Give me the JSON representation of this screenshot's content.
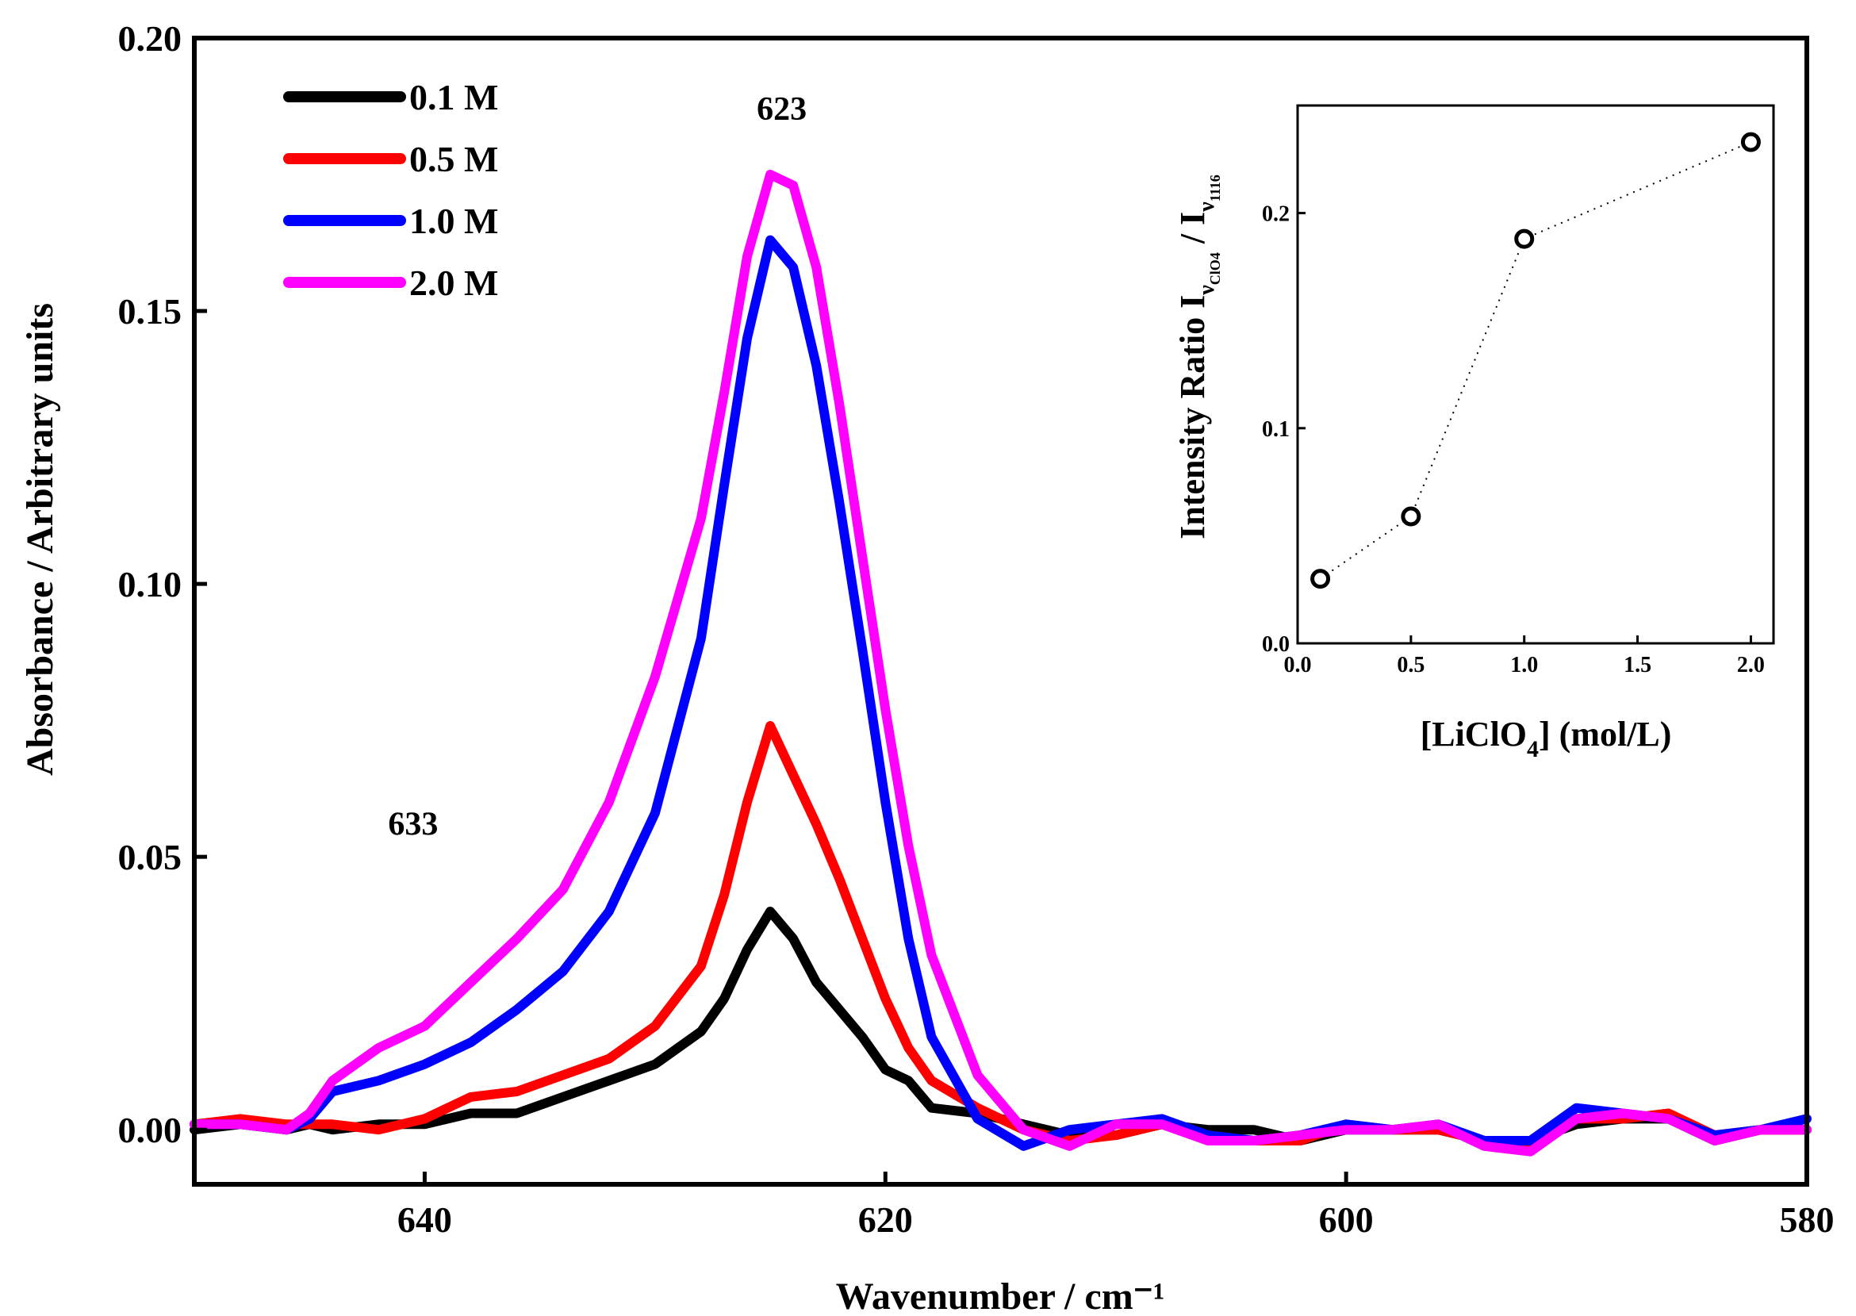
{
  "chart_data": [
    {
      "type": "line",
      "name": "main",
      "xlabel": "Wavenumber / cm⁻¹",
      "ylabel": "Absorbance / Arbitrary units",
      "xlim": [
        650,
        580
      ],
      "ylim": [
        -0.01,
        0.2
      ],
      "x_ticks": [
        640,
        620,
        600,
        580
      ],
      "x_tick_labels": [
        "640",
        "620",
        "600",
        "580"
      ],
      "y_ticks": [
        0.0,
        0.05,
        0.1,
        0.15,
        0.2
      ],
      "y_tick_labels": [
        "0.00",
        "0.05",
        "0.10",
        "0.15",
        "0.20"
      ],
      "legend": "top-left",
      "annotations": [
        {
          "text": "623",
          "x": 624.5,
          "y": 0.185
        },
        {
          "text": "633",
          "x": 640.5,
          "y": 0.054
        }
      ],
      "x": [
        650,
        648,
        646,
        645,
        644,
        642,
        640,
        638,
        636,
        634,
        632,
        630,
        628,
        627,
        626,
        625,
        624,
        623,
        622,
        621,
        620,
        619,
        618,
        616,
        614,
        612,
        610,
        608,
        606,
        604,
        602,
        600,
        598,
        596,
        594,
        592,
        590,
        588,
        586,
        584,
        582,
        580
      ],
      "series": [
        {
          "name": "0.1 M",
          "color": "#000000",
          "values": [
            0.0,
            0.001,
            0.0,
            0.001,
            0.0,
            0.001,
            0.001,
            0.003,
            0.003,
            0.006,
            0.009,
            0.012,
            0.018,
            0.024,
            0.033,
            0.04,
            0.035,
            0.027,
            0.022,
            0.017,
            0.011,
            0.009,
            0.004,
            0.003,
            0.001,
            -0.001,
            -0.001,
            0.001,
            0.0,
            0.0,
            -0.002,
            0.0,
            0.0,
            0.0,
            -0.002,
            -0.002,
            0.001,
            0.002,
            0.002,
            -0.002,
            0.0,
            0.0
          ]
        },
        {
          "name": "0.5 M",
          "color": "#ff0000",
          "values": [
            0.001,
            0.002,
            0.001,
            0.001,
            0.001,
            0.0,
            0.002,
            0.006,
            0.007,
            0.01,
            0.013,
            0.019,
            0.03,
            0.043,
            0.06,
            0.074,
            0.065,
            0.056,
            0.046,
            0.035,
            0.024,
            0.015,
            0.009,
            0.004,
            0.0,
            -0.002,
            -0.001,
            0.001,
            -0.001,
            -0.002,
            -0.002,
            0.001,
            0.0,
            0.0,
            -0.002,
            -0.003,
            0.002,
            0.002,
            0.003,
            -0.001,
            0.0,
            0.0
          ]
        },
        {
          "name": "1.0 M",
          "color": "#0000ff",
          "values": [
            0.001,
            0.001,
            0.0,
            0.002,
            0.007,
            0.009,
            0.012,
            0.016,
            0.022,
            0.029,
            0.04,
            0.058,
            0.09,
            0.118,
            0.145,
            0.163,
            0.158,
            0.14,
            0.115,
            0.088,
            0.06,
            0.035,
            0.017,
            0.002,
            -0.003,
            0.0,
            0.001,
            0.002,
            -0.001,
            -0.002,
            -0.001,
            0.001,
            0.0,
            0.001,
            -0.002,
            -0.002,
            0.004,
            0.003,
            0.002,
            -0.001,
            0.0,
            0.002
          ]
        },
        {
          "name": "2.0 M",
          "color": "#ff00ff",
          "values": [
            0.001,
            0.001,
            0.0,
            0.003,
            0.009,
            0.015,
            0.019,
            0.027,
            0.035,
            0.044,
            0.06,
            0.083,
            0.112,
            0.135,
            0.16,
            0.175,
            0.173,
            0.158,
            0.133,
            0.105,
            0.077,
            0.052,
            0.032,
            0.01,
            0.0,
            -0.003,
            0.001,
            0.001,
            -0.002,
            -0.002,
            -0.001,
            0.0,
            0.0,
            0.001,
            -0.003,
            -0.004,
            0.002,
            0.003,
            0.002,
            -0.002,
            0.0,
            0.0
          ]
        }
      ]
    },
    {
      "type": "scatter",
      "name": "inset",
      "title": "",
      "xlabel": "[LiClO₄]  (mol/L)",
      "ylabel": "Intensity Ratio I(ν ClO4) / I(ν 1116)",
      "ylabel_parts": {
        "main": "Intensity Ratio I",
        "sub1_prefix": "ν",
        "sub1_sub": "ClO4",
        "mid": " / I",
        "sub2_prefix": "ν",
        "sub2_sub": "1116"
      },
      "xlabel_parts": {
        "open": "[LiClO",
        "sub": "4",
        "close": "]  (mol/L)"
      },
      "xlim": [
        0.0,
        2.1
      ],
      "ylim": [
        0.0,
        0.25
      ],
      "x_ticks": [
        0.0,
        0.5,
        1.0,
        1.5,
        2.0
      ],
      "x_tick_labels": [
        "0.0",
        "0.5",
        "1.0",
        "1.5",
        "2.0"
      ],
      "y_ticks": [
        0.0,
        0.1,
        0.2
      ],
      "y_tick_labels": [
        "0.0",
        "0.1",
        "0.2"
      ],
      "x": [
        0.1,
        0.5,
        1.0,
        2.0
      ],
      "values": [
        0.03,
        0.059,
        0.188,
        0.233
      ],
      "connector": "dotted"
    }
  ]
}
